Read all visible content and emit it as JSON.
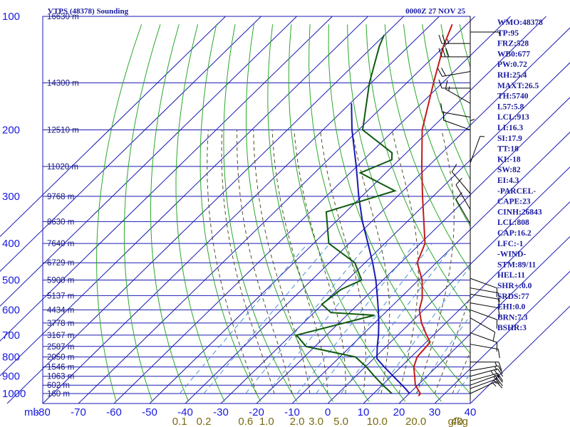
{
  "header": {
    "title": "VTPS (48378) Sounding",
    "valid_time": "0000Z 27 NOV 25"
  },
  "units": {
    "pressure_unit": "mb",
    "mixing_ratio_unit": "g/kg"
  },
  "colors": {
    "grid": "#1a1ab4",
    "dry_adiabat": "#2aa82a",
    "moist_adiabat": "#505028",
    "mixing_line": "#4a90d0",
    "temperature": "#c41a1a",
    "dewpoint": "#0f5a0f",
    "parcel": "#1a1ab4",
    "wind": "#000000",
    "text": "#1a1aa0"
  },
  "indices": [
    "WMO:48378",
    "TP:95",
    "FRZ:528",
    "WB0:677",
    "PW:0.72",
    "RH:25.4",
    "MAXT:26.5",
    "TH:5740",
    "L57:5.8",
    "LCL:913",
    "LI:16.3",
    "SI:17.9",
    "TT:18",
    "KI:-18",
    "SW:82",
    "EI:4.3",
    "-PARCEL-",
    "CAPE:23",
    "CINH:26843",
    "LCL:808",
    "CAP:16.2",
    "LFC:-1",
    "-WIND-",
    "STM:89/11",
    "HEL:11",
    "SHR+:0.0",
    "SRDS:77",
    "EHI:0.0",
    "BRN:7.3",
    "BSHR:3"
  ],
  "chart_data": {
    "type": "skew-t",
    "title": "VTPS (48378) Sounding",
    "time": "0000Z 27 NOV 25",
    "x_axis_unit": "°C",
    "y_axis_unit": "mb",
    "y_scale": "log",
    "ylim": [
      1000,
      100
    ],
    "xlim_at_bottom": [
      -80,
      40
    ],
    "grid": true,
    "pressure_levels": [
      100,
      200,
      300,
      400,
      500,
      600,
      700,
      800,
      900,
      1000
    ],
    "pressure_labels": [
      "100",
      "200",
      "300",
      "400",
      "500",
      "600",
      "700",
      "800",
      "900",
      "1000"
    ],
    "temperature_ticks": [
      -80,
      -70,
      -60,
      -50,
      -40,
      -30,
      -20,
      -10,
      0,
      10,
      20,
      30,
      40
    ],
    "temperature_labels": [
      "-80",
      "-70",
      "-60",
      "-50",
      "-40",
      "-30",
      "-20",
      "-10",
      "0",
      "10",
      "20",
      "30",
      "40"
    ],
    "mixing_ratio_labels": [
      "0.1",
      "0.2",
      "0.6",
      "1.0",
      "2.0",
      "3.0",
      "5.0",
      "10.0",
      "20.0",
      "40"
    ],
    "mixing_ratio_values": [
      0.1,
      0.2,
      0.6,
      1.0,
      2.0,
      3.0,
      5.0,
      10.0,
      20.0,
      40.0
    ],
    "height_labels": [
      {
        "p": 100,
        "text": "16630 m"
      },
      {
        "p": 150,
        "text": "14300 m"
      },
      {
        "p": 200,
        "text": "12510 m"
      },
      {
        "p": 250,
        "text": "11020 m"
      },
      {
        "p": 300,
        "text": "9768 m"
      },
      {
        "p": 350,
        "text": "8630 m"
      },
      {
        "p": 400,
        "text": "7640 m"
      },
      {
        "p": 450,
        "text": "6729 m"
      },
      {
        "p": 500,
        "text": "5900 m"
      },
      {
        "p": 550,
        "text": "5137 m"
      },
      {
        "p": 600,
        "text": "4434 m"
      },
      {
        "p": 650,
        "text": "3778 m"
      },
      {
        "p": 700,
        "text": "3167 m"
      },
      {
        "p": 750,
        "text": "2587 m"
      },
      {
        "p": 800,
        "text": "2050 m"
      },
      {
        "p": 850,
        "text": "1546 m"
      },
      {
        "p": 900,
        "text": "1063 m"
      },
      {
        "p": 950,
        "text": "602 m"
      },
      {
        "p": 1000,
        "text": "160 m"
      }
    ],
    "temperature_profile": [
      {
        "p": 1015,
        "t": 26.2
      },
      {
        "p": 1000,
        "t": 26.0
      },
      {
        "p": 950,
        "t": 22.1
      },
      {
        "p": 900,
        "t": 19.3
      },
      {
        "p": 850,
        "t": 16.3
      },
      {
        "p": 800,
        "t": 14.3
      },
      {
        "p": 750,
        "t": 13.8
      },
      {
        "p": 730,
        "t": 13.5
      },
      {
        "p": 700,
        "t": 10.5
      },
      {
        "p": 650,
        "t": 5.5
      },
      {
        "p": 600,
        "t": 1.0
      },
      {
        "p": 560,
        "t": -1.5
      },
      {
        "p": 500,
        "t": -7.0
      },
      {
        "p": 450,
        "t": -13.5
      },
      {
        "p": 400,
        "t": -17.0
      },
      {
        "p": 300,
        "t": -31.6
      },
      {
        "p": 250,
        "t": -40.6
      },
      {
        "p": 200,
        "t": -51.3
      },
      {
        "p": 150,
        "t": -62.0
      },
      {
        "p": 120,
        "t": -70.0
      },
      {
        "p": 105,
        "t": -74.0
      }
    ],
    "dewpoint_profile": [
      {
        "p": 1000,
        "td": 18.0
      },
      {
        "p": 950,
        "td": 13.0
      },
      {
        "p": 900,
        "td": 8.0
      },
      {
        "p": 850,
        "td": 3.0
      },
      {
        "p": 800,
        "td": -3.0
      },
      {
        "p": 750,
        "td": -20.0
      },
      {
        "p": 700,
        "td": -26.0
      },
      {
        "p": 620,
        "td": -10.0
      },
      {
        "p": 610,
        "td": -23.0
      },
      {
        "p": 580,
        "td": -28.0
      },
      {
        "p": 530,
        "td": -27.0
      },
      {
        "p": 500,
        "td": -24.0
      },
      {
        "p": 450,
        "td": -31.0
      },
      {
        "p": 400,
        "td": -44.0
      },
      {
        "p": 330,
        "td": -54.0
      },
      {
        "p": 290,
        "td": -41.0
      },
      {
        "p": 260,
        "td": -56.0
      },
      {
        "p": 240,
        "td": -51.0
      },
      {
        "p": 230,
        "td": -53.0
      },
      {
        "p": 200,
        "td": -68.0
      },
      {
        "p": 150,
        "td": -80.0
      },
      {
        "p": 120,
        "td": -88.0
      },
      {
        "p": 112,
        "td": -90.0
      }
    ],
    "parcel_profile": [
      {
        "p": 1000,
        "t": 23.0
      },
      {
        "p": 980,
        "t": 21.2
      },
      {
        "p": 950,
        "t": 18.4
      },
      {
        "p": 900,
        "t": 13.3
      },
      {
        "p": 850,
        "t": 8.0
      },
      {
        "p": 808,
        "t": 3.5
      },
      {
        "p": 750,
        "t": 0.0
      },
      {
        "p": 700,
        "t": -3.0
      },
      {
        "p": 650,
        "t": -6.5
      },
      {
        "p": 600,
        "t": -10.5
      },
      {
        "p": 550,
        "t": -15.0
      },
      {
        "p": 500,
        "t": -20.0
      },
      {
        "p": 450,
        "t": -26.0
      },
      {
        "p": 400,
        "t": -33.0
      },
      {
        "p": 350,
        "t": -41.0
      },
      {
        "p": 300,
        "t": -49.5
      },
      {
        "p": 250,
        "t": -59.0
      },
      {
        "p": 200,
        "t": -71.0
      },
      {
        "p": 170,
        "t": -79.0
      }
    ],
    "wind_profile": [
      {
        "p": 1000,
        "dir": 65,
        "spd": 15
      },
      {
        "p": 970,
        "dir": 70,
        "spd": 15
      },
      {
        "p": 950,
        "dir": 70,
        "spd": 20
      },
      {
        "p": 925,
        "dir": 75,
        "spd": 20
      },
      {
        "p": 900,
        "dir": 75,
        "spd": 25
      },
      {
        "p": 870,
        "dir": 80,
        "spd": 15
      },
      {
        "p": 825,
        "dir": 90,
        "spd": 15
      },
      {
        "p": 740,
        "dir": 100,
        "spd": 10
      },
      {
        "p": 690,
        "dir": 110,
        "spd": 10
      },
      {
        "p": 630,
        "dir": 120,
        "spd": 10
      },
      {
        "p": 600,
        "dir": 110,
        "spd": 10
      },
      {
        "p": 575,
        "dir": 100,
        "spd": 10
      },
      {
        "p": 545,
        "dir": 100,
        "spd": 10
      },
      {
        "p": 525,
        "dir": 100,
        "spd": 10
      },
      {
        "p": 495,
        "dir": 110,
        "spd": 10
      },
      {
        "p": 355,
        "dir": 330,
        "spd": 10
      },
      {
        "p": 325,
        "dir": 330,
        "spd": 10
      },
      {
        "p": 295,
        "dir": 320,
        "spd": 10
      },
      {
        "p": 245,
        "dir": 20,
        "spd": 5
      },
      {
        "p": 225,
        "dir": 0,
        "spd": 5
      },
      {
        "p": 200,
        "dir": 290,
        "spd": 10
      },
      {
        "p": 185,
        "dir": 280,
        "spd": 10
      },
      {
        "p": 170,
        "dir": 300,
        "spd": 15
      },
      {
        "p": 155,
        "dir": 270,
        "spd": 10
      },
      {
        "p": 140,
        "dir": 260,
        "spd": 20
      },
      {
        "p": 128,
        "dir": 270,
        "spd": 30
      },
      {
        "p": 118,
        "dir": 270,
        "spd": 25
      },
      {
        "p": 110,
        "dir": 90,
        "spd": 5
      }
    ]
  }
}
